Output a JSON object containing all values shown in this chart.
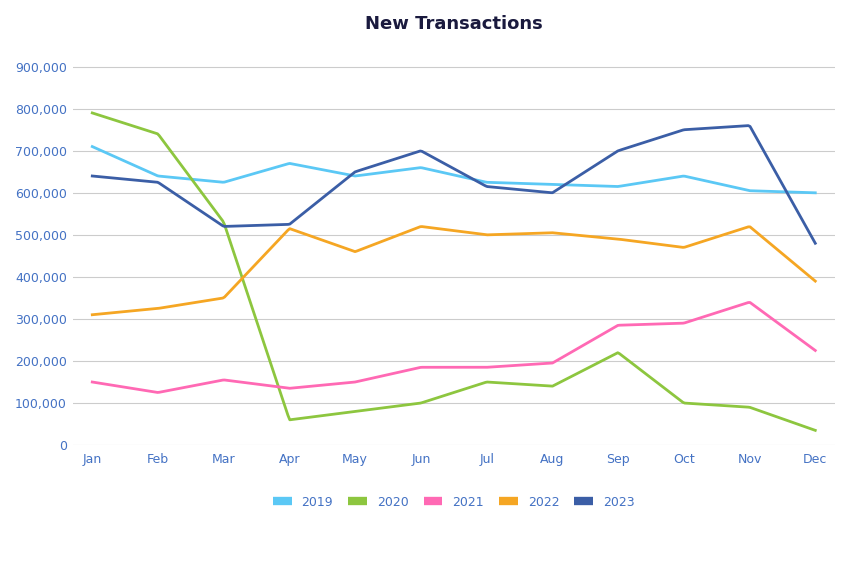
{
  "title": "New Transactions",
  "months": [
    "Jan",
    "Feb",
    "Mar",
    "Apr",
    "May",
    "Jun",
    "Jul",
    "Aug",
    "Sep",
    "Oct",
    "Nov",
    "Dec"
  ],
  "series": {
    "2019": [
      710000,
      640000,
      625000,
      670000,
      640000,
      660000,
      625000,
      620000,
      615000,
      640000,
      605000,
      600000
    ],
    "2020": [
      790000,
      740000,
      530000,
      60000,
      80000,
      100000,
      150000,
      140000,
      220000,
      100000,
      90000,
      35000
    ],
    "2021": [
      150000,
      125000,
      155000,
      135000,
      150000,
      185000,
      185000,
      195000,
      285000,
      290000,
      340000,
      225000
    ],
    "2022": [
      310000,
      325000,
      350000,
      515000,
      460000,
      520000,
      500000,
      505000,
      490000,
      470000,
      520000,
      390000
    ],
    "2023": [
      640000,
      625000,
      520000,
      525000,
      650000,
      700000,
      615000,
      600000,
      700000,
      750000,
      760000,
      480000
    ]
  },
  "colors": {
    "2019": "#5BC8F5",
    "2020": "#8DC63F",
    "2021": "#FF69B4",
    "2022": "#F5A623",
    "2023": "#3B5EA6"
  },
  "ylim": [
    0,
    950000
  ],
  "yticks": [
    0,
    100000,
    200000,
    300000,
    400000,
    500000,
    600000,
    700000,
    800000,
    900000
  ],
  "background_color": "#FFFFFF",
  "grid_color": "#CCCCCC",
  "title_fontsize": 13,
  "tick_color": "#4472C4",
  "legend_labels": [
    "2019",
    "2020",
    "2021",
    "2022",
    "2023"
  ]
}
